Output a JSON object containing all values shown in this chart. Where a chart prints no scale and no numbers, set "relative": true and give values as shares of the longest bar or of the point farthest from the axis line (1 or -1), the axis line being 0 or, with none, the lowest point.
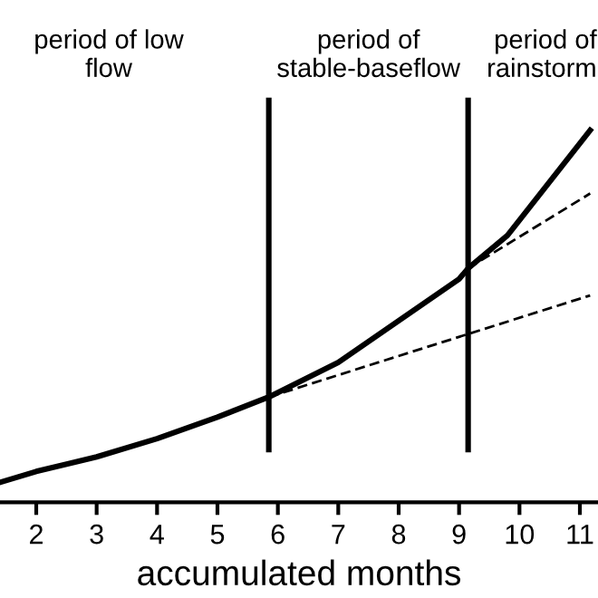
{
  "chart_data": {
    "type": "line",
    "relative": true,
    "xlabel": "accumulated months",
    "xlim": [
      1.4,
      11.3
    ],
    "xticks": [
      2,
      3,
      4,
      5,
      6,
      7,
      8,
      9,
      10,
      11
    ],
    "series": [
      {
        "color": "#000000",
        "line_style": "solid",
        "x": [
          1.41,
          2,
          3,
          4,
          5,
          5.85,
          7,
          8,
          9,
          9.15,
          9.8,
          11.17
        ],
        "values": [
          0.054,
          0.083,
          0.122,
          0.171,
          0.229,
          0.283,
          0.376,
          0.488,
          0.6,
          0.629,
          0.717,
          1.0
        ]
      },
      {
        "color": "#000000",
        "line_style": "dashed",
        "x": [
          5.85,
          11.17
        ],
        "values": [
          0.283,
          0.556
        ]
      },
      {
        "color": "#000000",
        "line_style": "dashed",
        "x": [
          9.15,
          11.17
        ],
        "values": [
          0.629,
          0.83
        ]
      }
    ],
    "ref_lines": [
      {
        "axis": "x",
        "value": 5.85,
        "color": "#000000"
      },
      {
        "axis": "x",
        "value": 9.15,
        "color": "#000000"
      }
    ],
    "annotations": [
      "period of low\nflow",
      "period of\nstable-baseflow",
      "period of\nrainstorm"
    ],
    "grid": false,
    "legend": false
  }
}
